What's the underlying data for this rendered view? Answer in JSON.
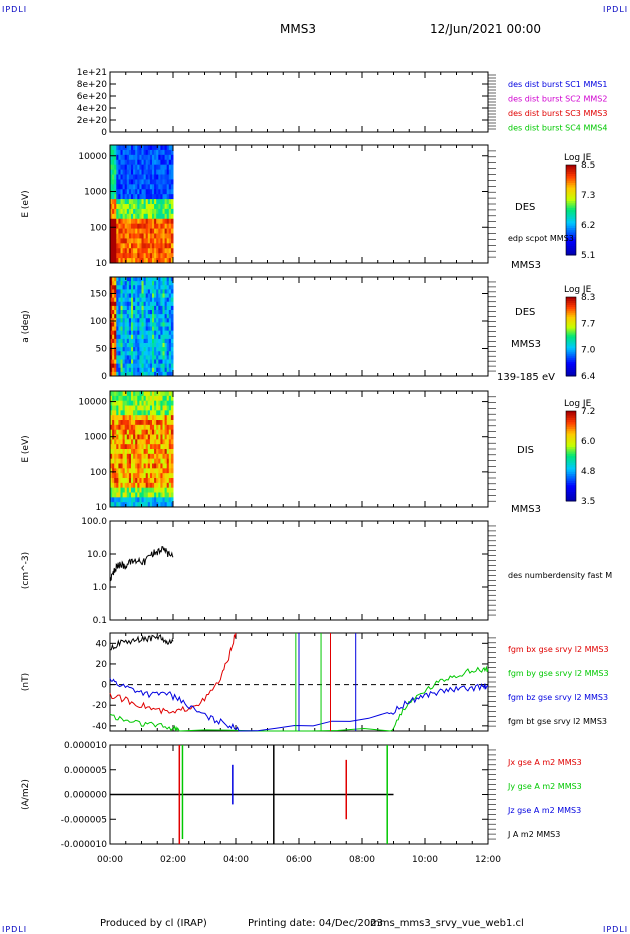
{
  "header": {
    "corner_label": "IPDLI",
    "spacecraft": "MMS3",
    "date": "12/Jun/2021 00:00"
  },
  "footer": {
    "produced_by": "Produced by cl (IRAP)",
    "printing_date": "Printing date: 04/Dec/2023",
    "filename": "mms_mms3_srvy_vue_web1.cl"
  },
  "colors": {
    "red": "#e00000",
    "green": "#00c800",
    "blue": "#0000e0",
    "magenta": "#d000d0",
    "black": "#000000"
  },
  "time_axis": {
    "range_hours": [
      0,
      12
    ],
    "tick_labels": [
      "00:00",
      "02:00",
      "04:00",
      "06:00",
      "08:00",
      "10:00",
      "12:00"
    ]
  },
  "chart_data": [
    {
      "type": "line",
      "ylabel": "",
      "yticks": [
        "1e+21",
        "8e+20",
        "6e+20",
        "4e+20",
        "2e+20",
        "0"
      ],
      "ylim": [
        0,
        1e+21
      ],
      "dashed_zero_line": true,
      "legend": [
        {
          "label": "des dist burst SC1 MMS1",
          "color": "#0000e0"
        },
        {
          "label": "des dist burst SC2 MMS2",
          "color": "#d000d0"
        },
        {
          "label": "des dist burst SC3 MMS3",
          "color": "#e00000"
        },
        {
          "label": "des dist burst SC4 MMS4",
          "color": "#00c800"
        }
      ]
    },
    {
      "type": "heatmap",
      "ylabel": "E (eV)",
      "yscale": "log",
      "yticks": [
        "10000",
        "1000",
        "100",
        "10"
      ],
      "ylim": [
        10,
        20000
      ],
      "data_time_range_hours": [
        0,
        2.0
      ],
      "labels": [
        "DES",
        "edp scpot MMS3",
        "MMS3"
      ],
      "colorbar": {
        "title": "Log JE",
        "ticks": [
          "8.5",
          "7.3",
          "6.2",
          "5.1"
        ],
        "range": [
          5.1,
          8.5
        ]
      }
    },
    {
      "type": "heatmap",
      "ylabel": "a (deg)",
      "yticks": [
        "150",
        "100",
        "50",
        "0"
      ],
      "ylim": [
        0,
        180
      ],
      "data_time_range_hours": [
        0,
        2.0
      ],
      "labels": [
        "DES",
        "MMS3",
        "139-185 eV"
      ],
      "colorbar": {
        "title": "Log JE",
        "ticks": [
          "8.3",
          "7.7",
          "7.0",
          "6.4"
        ],
        "range": [
          6.4,
          8.3
        ]
      }
    },
    {
      "type": "heatmap",
      "ylabel": "E (eV)",
      "yscale": "log",
      "yticks": [
        "10000",
        "1000",
        "100",
        "10"
      ],
      "ylim": [
        10,
        20000
      ],
      "data_time_range_hours": [
        0,
        2.0
      ],
      "labels": [
        "DIS",
        "MMS3"
      ],
      "colorbar": {
        "title": "Log JE",
        "ticks": [
          "7.2",
          "6.0",
          "4.8",
          "3.5"
        ],
        "range": [
          3.5,
          7.2
        ]
      }
    },
    {
      "type": "line",
      "ylabel": "(cm^-3)",
      "yscale": "log",
      "yticks": [
        "100.0",
        "10.0",
        "1.0",
        "0.1"
      ],
      "ylim": [
        0.1,
        100
      ],
      "legend": [
        {
          "label": "des numberdensity fast M",
          "color": "#000000"
        }
      ],
      "series": [
        {
          "name": "des numberdensity fast M",
          "color": "#000000",
          "x": [
            0.0,
            0.1,
            0.2,
            0.35,
            0.5,
            0.7,
            0.9,
            1.1,
            1.3,
            1.5,
            1.7,
            1.85,
            2.0
          ],
          "y": [
            1.5,
            2.5,
            4.0,
            5.0,
            4.5,
            6.0,
            7.0,
            6.0,
            10.0,
            12.0,
            15.0,
            10.0,
            8.0
          ]
        }
      ]
    },
    {
      "type": "line",
      "ylabel": "(nT)",
      "yticks": [
        "40",
        "20",
        "0",
        "-20",
        "-40"
      ],
      "ylim": [
        -45,
        50
      ],
      "dashed_zero_line": true,
      "legend": [
        {
          "label": "fgm bx gse srvy l2 MMS3",
          "color": "#e00000"
        },
        {
          "label": "fgm by gse srvy l2 MMS3",
          "color": "#00c800"
        },
        {
          "label": "fgm bz gse srvy l2 MMS3",
          "color": "#0000e0"
        },
        {
          "label": "fgm bt gse srvy l2 MMS3",
          "color": "#000000"
        }
      ],
      "series": [
        {
          "name": "fgm bx gse srvy l2 MMS3",
          "color": "#e00000",
          "x": [
            0.0,
            0.5,
            1.0,
            1.5,
            2.0,
            2.5,
            3.0,
            3.5,
            3.8,
            4.0
          ],
          "y": [
            -10,
            -15,
            -20,
            -25,
            -28,
            -22,
            -15,
            5,
            30,
            50
          ]
        },
        {
          "name": "fgm by gse srvy l2 MMS3",
          "color": "#00c800",
          "x": [
            0.0,
            0.5,
            1.0,
            1.5,
            2.0,
            2.2,
            8.9,
            9.3,
            9.8,
            10.3,
            10.8,
            11.3,
            11.8,
            12.0
          ],
          "y": [
            -30,
            -35,
            -38,
            -40,
            -42,
            -45,
            -45,
            -25,
            -10,
            0,
            8,
            12,
            15,
            15
          ]
        },
        {
          "name": "fgm bz gse srvy l2 MMS3",
          "color": "#0000e0",
          "x": [
            0.0,
            0.3,
            0.8,
            1.3,
            1.8,
            2.2,
            2.7,
            3.2,
            3.7,
            4.1,
            8.8,
            9.3,
            9.8,
            10.3,
            10.8,
            11.3,
            11.8,
            12.0
          ],
          "y": [
            5,
            0,
            -5,
            -10,
            -8,
            -15,
            -25,
            -33,
            -38,
            -45,
            -30,
            -20,
            -12,
            -8,
            -5,
            -4,
            -2,
            -2
          ]
        },
        {
          "name": "fgm bt gse srvy l2 MMS3",
          "color": "#000000",
          "x": [
            0.0,
            0.3,
            0.7,
            1.0,
            1.3,
            1.6,
            1.8,
            2.0
          ],
          "y": [
            35,
            40,
            42,
            44,
            45,
            46,
            40,
            42
          ]
        }
      ]
    },
    {
      "type": "line",
      "ylabel": "(A/m2)",
      "yticks": [
        "0.000010",
        "0.000005",
        "0.000000",
        "-0.000005",
        "-0.000010"
      ],
      "ylim": [
        -1e-05,
        1e-05
      ],
      "legend": [
        {
          "label": "Jx gse A m2 MMS3",
          "color": "#e00000"
        },
        {
          "label": "Jy gse A m2 MMS3",
          "color": "#00c800"
        },
        {
          "label": "Jz gse A m2 MMS3",
          "color": "#0000e0"
        },
        {
          "label": "J A m2 MMS3",
          "color": "#000000"
        }
      ],
      "spikes": [
        {
          "x": 2.2,
          "ymin": -1e-05,
          "ymax": 1e-05
        },
        {
          "x": 2.3,
          "ymin": -9e-06,
          "ymax": 1e-05
        },
        {
          "x": 3.9,
          "ymin": -2e-06,
          "ymax": 6e-06
        },
        {
          "x": 5.2,
          "ymin": -1e-05,
          "ymax": 1e-05
        },
        {
          "x": 7.5,
          "ymin": -5e-06,
          "ymax": 7e-06
        },
        {
          "x": 8.8,
          "ymin": -1e-05,
          "ymax": 1e-05
        }
      ]
    }
  ]
}
